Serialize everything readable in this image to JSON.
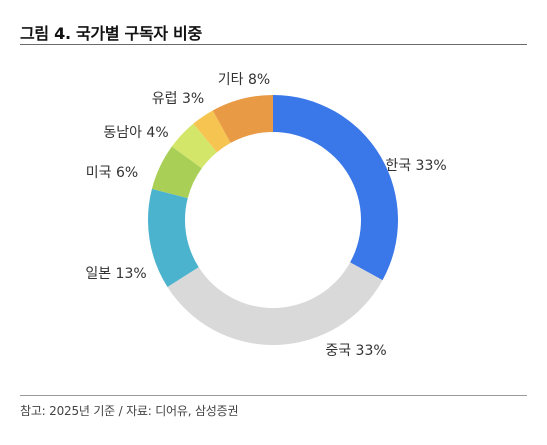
{
  "title": "그림 4. 국가별 구독자 비중",
  "footnote": "참고: 2025년 기준 / 자료: 디어유, 삼성증권",
  "chart_data": {
    "type": "pie",
    "variant": "donut",
    "start": "12 o'clock, clockwise",
    "slices": [
      {
        "label": "한국 33%",
        "value": 33,
        "color": "#3a77e8"
      },
      {
        "label": "중국 33%",
        "value": 33,
        "color": "#d9d9d9"
      },
      {
        "label": "일본 13%",
        "value": 13,
        "color": "#4cb3cf"
      },
      {
        "label": "미국 6%",
        "value": 6,
        "color": "#a9cf57"
      },
      {
        "label": "동남아 4%",
        "value": 4,
        "color": "#d3e66a"
      },
      {
        "label": "유럽 3%",
        "value": 3,
        "color": "#f5c451"
      },
      {
        "label": "기타 8%",
        "value": 8,
        "color": "#e99a45"
      }
    ]
  }
}
